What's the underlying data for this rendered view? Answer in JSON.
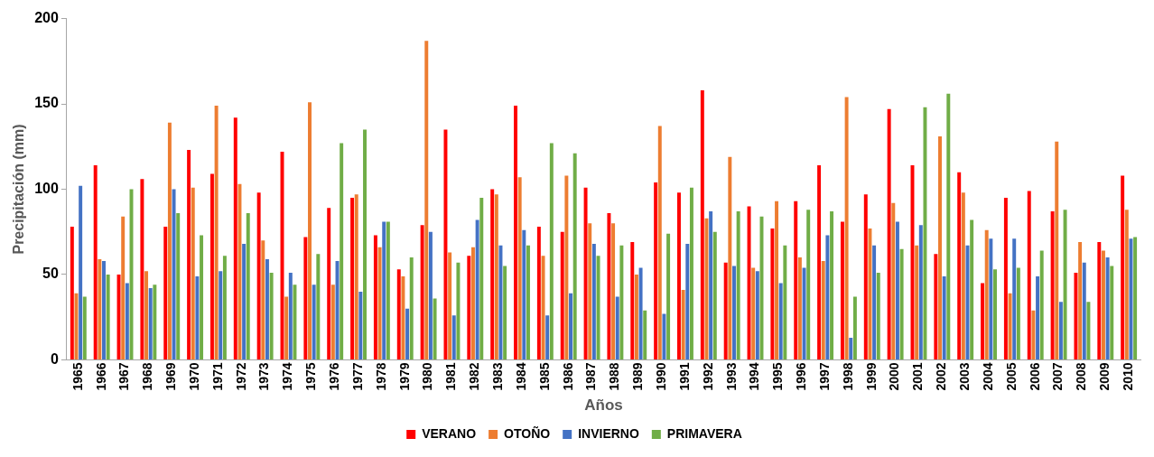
{
  "chart_data": {
    "type": "bar",
    "xlabel": "Años",
    "ylabel": "Precipitación (mm)",
    "categories": [
      "1965",
      "1966",
      "1967",
      "1968",
      "1969",
      "1970",
      "1971",
      "1972",
      "1973",
      "1974",
      "1975",
      "1976",
      "1977",
      "1978",
      "1979",
      "1980",
      "1981",
      "1982",
      "1983",
      "1984",
      "1985",
      "1986",
      "1987",
      "1988",
      "1989",
      "1990",
      "1991",
      "1992",
      "1993",
      "1994",
      "1995",
      "1996",
      "1997",
      "1998",
      "1999",
      "2000",
      "2001",
      "2002",
      "2003",
      "2004",
      "2005",
      "2006",
      "2007",
      "2008",
      "2009",
      "2010"
    ],
    "series": [
      {
        "name": "VERANO",
        "color": "#ff0000",
        "values": [
          78,
          114,
          50,
          106,
          78,
          123,
          109,
          142,
          98,
          122,
          72,
          89,
          95,
          73,
          53,
          79,
          135,
          61,
          100,
          149,
          78,
          75,
          101,
          86,
          69,
          104,
          98,
          158,
          57,
          90,
          77,
          93,
          114,
          81,
          97,
          147,
          114,
          62,
          110,
          45,
          95,
          99,
          87,
          51,
          69,
          108
        ]
      },
      {
        "name": "OTOÑO",
        "color": "#ed7d31",
        "values": [
          39,
          59,
          84,
          52,
          139,
          101,
          149,
          103,
          70,
          37,
          151,
          44,
          97,
          66,
          49,
          187,
          63,
          66,
          97,
          107,
          61,
          108,
          80,
          80,
          50,
          137,
          41,
          83,
          119,
          54,
          93,
          60,
          58,
          154,
          77,
          92,
          67,
          131,
          98,
          76,
          39,
          29,
          128,
          69,
          64,
          88
        ]
      },
      {
        "name": "INVIERNO",
        "color": "#4472c4",
        "values": [
          102,
          58,
          45,
          42,
          100,
          49,
          52,
          68,
          59,
          51,
          44,
          58,
          40,
          81,
          30,
          75,
          26,
          82,
          67,
          76,
          26,
          39,
          68,
          37,
          54,
          27,
          68,
          87,
          55,
          52,
          45,
          54,
          73,
          13,
          67,
          81,
          79,
          49,
          67,
          71,
          71,
          49,
          34,
          57,
          60,
          71
        ]
      },
      {
        "name": "PRIMAVERA",
        "color": "#70ad47",
        "values": [
          37,
          50,
          100,
          44,
          86,
          73,
          61,
          86,
          51,
          44,
          62,
          127,
          135,
          81,
          60,
          36,
          57,
          95,
          55,
          67,
          127,
          121,
          61,
          67,
          29,
          74,
          101,
          75,
          87,
          84,
          67,
          88,
          87,
          37,
          51,
          65,
          148,
          156,
          82,
          53,
          54,
          64,
          88,
          34,
          55,
          72
        ]
      }
    ],
    "ylim": [
      0,
      200
    ],
    "yticks": [
      0,
      50,
      100,
      150,
      200
    ],
    "grid": false,
    "legend": "bottom"
  }
}
